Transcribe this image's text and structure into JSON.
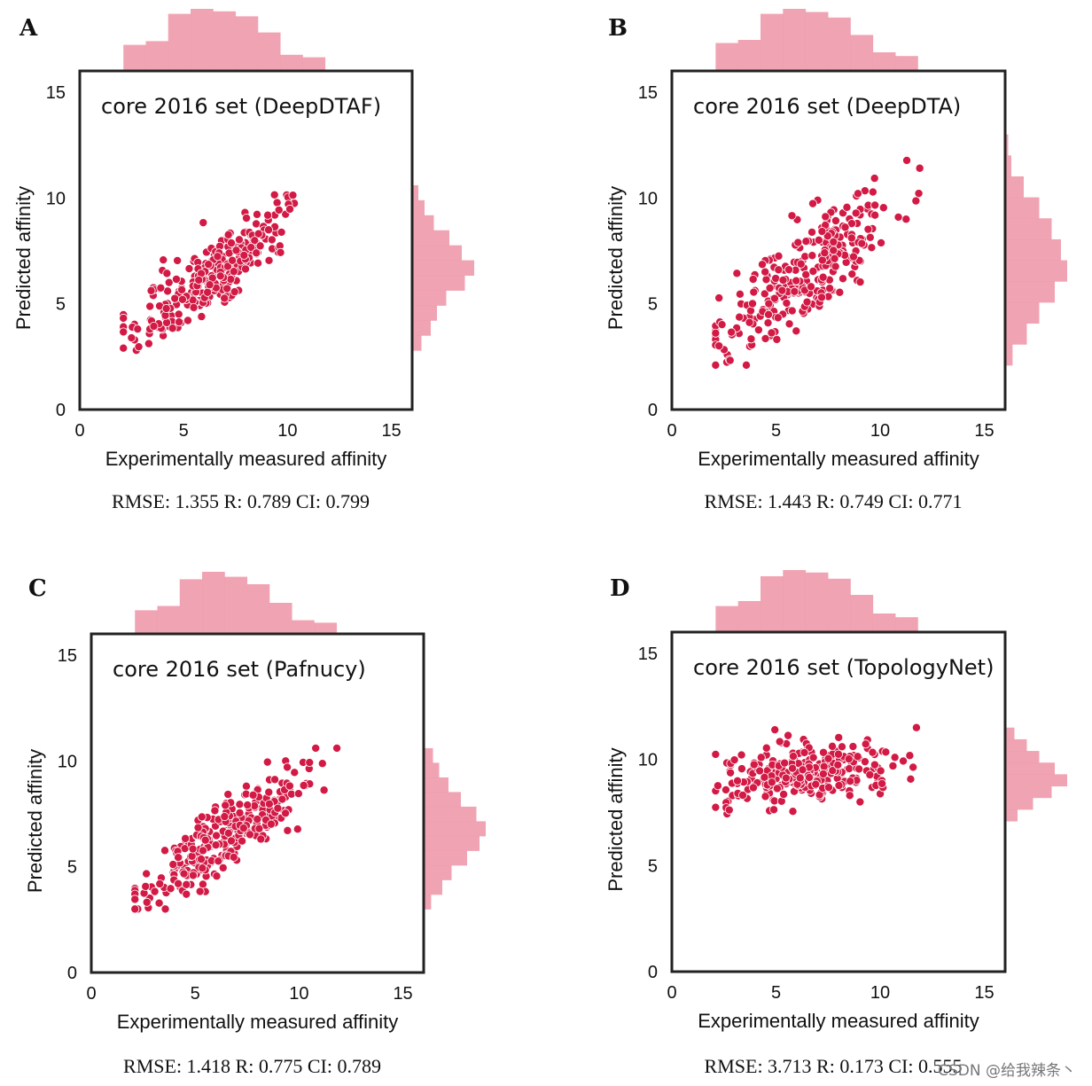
{
  "colors": {
    "scatter": "#d21a45",
    "histogram": "#ee9aab",
    "frame": "#222222",
    "text": "#111111"
  },
  "chart_data": [
    {
      "panel": "A",
      "type": "scatter",
      "title": "core 2016 set (DeepDTAF)",
      "xlabel": "Experimentally measured affinity",
      "ylabel": "Predicted affinity",
      "xlim": [
        0,
        16
      ],
      "ylim": [
        0,
        16
      ],
      "xticks": [
        "0",
        "5",
        "10",
        "15"
      ],
      "yticks": [
        "0",
        "5",
        "10",
        "15"
      ],
      "metrics": "RMSE: 1.355 R: 0.789 CI: 0.799",
      "pred_mean": 6.5,
      "pred_spread": 1.2,
      "slope": 0.72,
      "noise": 0.85,
      "pred_min": 2.8,
      "pred_max": 10.6,
      "hist_x": [
        0.42,
        0.48,
        0.92,
        1.0,
        0.96,
        0.88,
        0.62,
        0.26,
        0.22
      ],
      "hist_y": [
        0.1,
        0.2,
        0.35,
        0.6,
        0.8,
        1.0,
        0.85,
        0.55,
        0.4,
        0.3,
        0.15
      ]
    },
    {
      "panel": "B",
      "type": "scatter",
      "title": "core 2016 set (DeepDTA)",
      "xlabel": "Experimentally measured affinity",
      "ylabel": "Predicted affinity",
      "xlim": [
        0,
        16
      ],
      "ylim": [
        0,
        16
      ],
      "xticks": [
        "0",
        "5",
        "10",
        "15"
      ],
      "yticks": [
        "0",
        "5",
        "10",
        "15"
      ],
      "metrics": "RMSE: 1.443 R: 0.749 CI: 0.771",
      "pred_mean": 6.4,
      "pred_spread": 1.5,
      "slope": 0.75,
      "noise": 1.1,
      "pred_min": 2.1,
      "pred_max": 13.0,
      "hist_x": [
        0.45,
        0.5,
        0.92,
        1.0,
        0.95,
        0.86,
        0.58,
        0.3,
        0.24
      ],
      "hist_y": [
        0.05,
        0.1,
        0.3,
        0.55,
        0.75,
        0.9,
        1.0,
        0.8,
        0.55,
        0.35,
        0.12
      ]
    },
    {
      "panel": "C",
      "type": "scatter",
      "title": "core 2016 set (Pafnucy)",
      "xlabel": "Experimentally measured affinity",
      "ylabel": "Predicted affinity",
      "xlim": [
        0,
        16
      ],
      "ylim": [
        0,
        16
      ],
      "xticks": [
        "0",
        "5",
        "10",
        "15"
      ],
      "yticks": [
        "0",
        "5",
        "10",
        "15"
      ],
      "metrics": "RMSE: 1.418 R: 0.775 CI: 0.789",
      "pred_mean": 6.4,
      "pred_spread": 1.3,
      "slope": 0.68,
      "noise": 0.85,
      "pred_min": 3.0,
      "pred_max": 10.6,
      "hist_x": [
        0.38,
        0.45,
        0.88,
        1.0,
        0.92,
        0.8,
        0.5,
        0.22,
        0.18
      ],
      "hist_y": [
        0.15,
        0.25,
        0.4,
        0.6,
        0.85,
        1.0,
        0.9,
        0.7,
        0.45,
        0.3,
        0.12
      ]
    },
    {
      "panel": "D",
      "type": "scatter",
      "title": "core 2016 set (TopologyNet)",
      "xlabel": "Experimentally measured affinity",
      "ylabel": "Predicted affinity",
      "xlim": [
        0,
        16
      ],
      "ylim": [
        0,
        16
      ],
      "xticks": [
        "0",
        "5",
        "10",
        "15"
      ],
      "yticks": [
        "0",
        "5",
        "10",
        "15"
      ],
      "metrics": "RMSE: 3.713 R: 0.173 CI: 0.555",
      "pred_mean": 9.4,
      "pred_spread": 0.6,
      "slope": 0.1,
      "noise": 0.7,
      "pred_min": 7.1,
      "pred_max": 11.5,
      "hist_x": [
        0.42,
        0.5,
        0.9,
        1.0,
        0.96,
        0.86,
        0.6,
        0.3,
        0.24
      ],
      "hist_y": [
        0.15,
        0.35,
        0.55,
        0.8,
        1.0,
        0.75,
        0.45,
        0.2
      ]
    }
  ],
  "watermark": "CSDN @给我辣条丶"
}
